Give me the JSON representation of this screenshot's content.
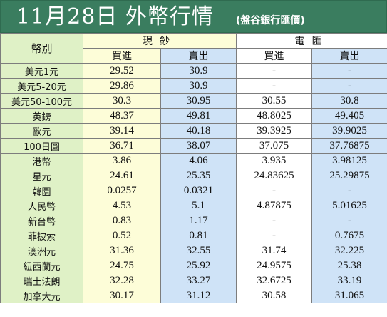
{
  "header": {
    "title": "11月28日 外幣行情",
    "subtitle": "(盤谷銀行匯價)"
  },
  "table": {
    "corner_label": "幣別",
    "group_cash": "現鈔",
    "group_tt": "電匯",
    "buy_label": "買進",
    "sell_label": "賣出",
    "rows": [
      {
        "name": "美元1元",
        "cash_buy": "29.52",
        "cash_sell": "30.9",
        "tt_buy": "-",
        "tt_sell": "-"
      },
      {
        "name": "美元5-20元",
        "cash_buy": "29.86",
        "cash_sell": "30.9",
        "tt_buy": "-",
        "tt_sell": "-"
      },
      {
        "name": "美元50-100元",
        "cash_buy": "30.3",
        "cash_sell": "30.95",
        "tt_buy": "30.55",
        "tt_sell": "30.8"
      },
      {
        "name": "英鎊",
        "cash_buy": "48.37",
        "cash_sell": "49.81",
        "tt_buy": "48.8025",
        "tt_sell": "49.405"
      },
      {
        "name": "歐元",
        "cash_buy": "39.14",
        "cash_sell": "40.18",
        "tt_buy": "39.3925",
        "tt_sell": "39.9025"
      },
      {
        "name": "100日圓",
        "cash_buy": "36.71",
        "cash_sell": "38.07",
        "tt_buy": "37.075",
        "tt_sell": "37.76875"
      },
      {
        "name": "港幣",
        "cash_buy": "3.86",
        "cash_sell": "4.06",
        "tt_buy": "3.935",
        "tt_sell": "3.98125"
      },
      {
        "name": "星元",
        "cash_buy": "24.61",
        "cash_sell": "25.35",
        "tt_buy": "24.83625",
        "tt_sell": "25.29875"
      },
      {
        "name": "韓圜",
        "cash_buy": "0.0257",
        "cash_sell": "0.0321",
        "tt_buy": "-",
        "tt_sell": "-"
      },
      {
        "name": "人民幣",
        "cash_buy": "4.53",
        "cash_sell": "5.1",
        "tt_buy": "4.87875",
        "tt_sell": "5.01625"
      },
      {
        "name": "新台幣",
        "cash_buy": "0.83",
        "cash_sell": "1.17",
        "tt_buy": "-",
        "tt_sell": "-"
      },
      {
        "name": "菲披索",
        "cash_buy": "0.52",
        "cash_sell": "0.81",
        "tt_buy": "-",
        "tt_sell": "0.7675"
      },
      {
        "name": "澳洲元",
        "cash_buy": "31.36",
        "cash_sell": "32.55",
        "tt_buy": "31.74",
        "tt_sell": "32.225"
      },
      {
        "name": "紐西蘭元",
        "cash_buy": "24.75",
        "cash_sell": "25.92",
        "tt_buy": "24.9575",
        "tt_sell": "25.38"
      },
      {
        "name": "瑞士法朗",
        "cash_buy": "32.28",
        "cash_sell": "33.27",
        "tt_buy": "32.6725",
        "tt_sell": "33.19"
      },
      {
        "name": "加拿大元",
        "cash_buy": "30.17",
        "cash_sell": "31.12",
        "tt_buy": "30.58",
        "tt_sell": "31.065"
      }
    ]
  }
}
